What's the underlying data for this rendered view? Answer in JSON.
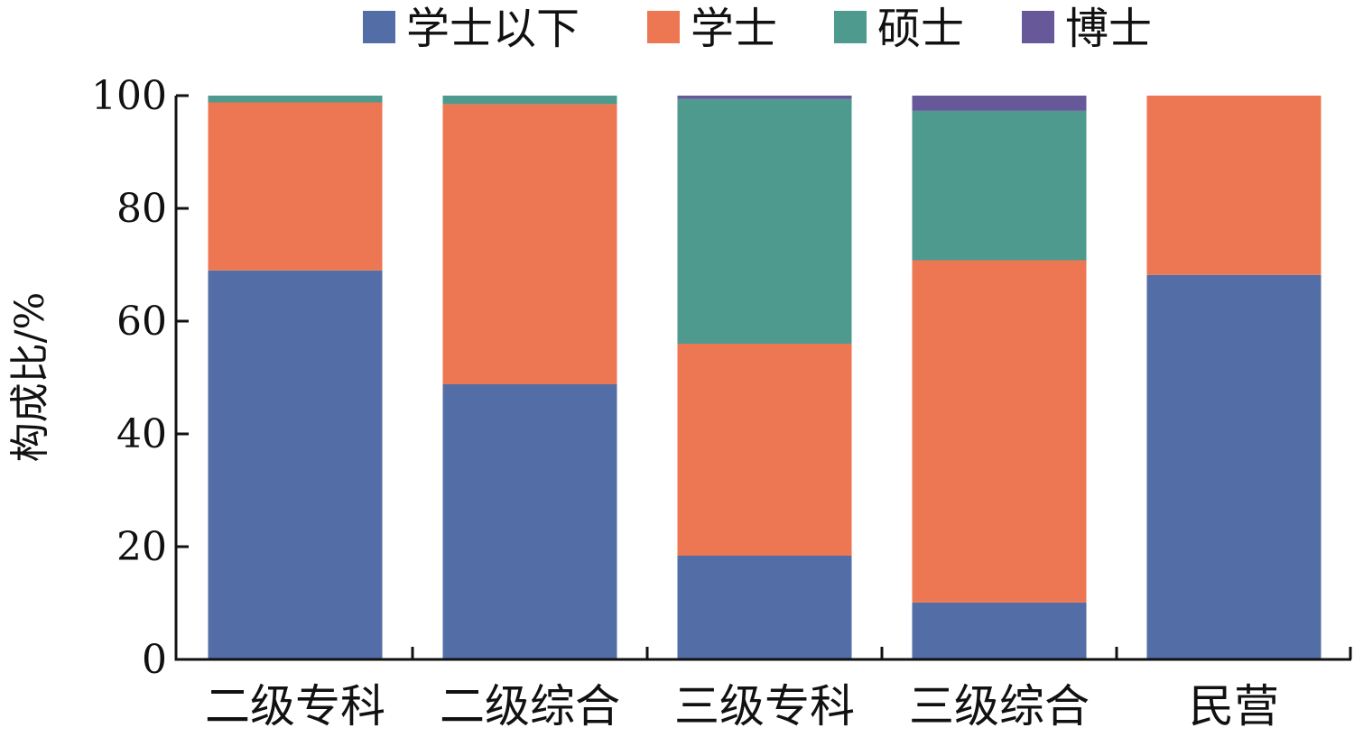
{
  "chart_data": {
    "type": "bar",
    "stacked": true,
    "title": "",
    "xlabel": "",
    "ylabel": "构成比/%",
    "ylim": [
      0,
      100
    ],
    "yticks": [
      "0",
      "20",
      "40",
      "60",
      "80",
      "100"
    ],
    "grid": false,
    "legend_position": "top",
    "categories": [
      "二级专科",
      "二级综合",
      "三级专科",
      "三级综合",
      "民营"
    ],
    "series": [
      {
        "name": "学士以下",
        "color": "#536DA6",
        "values": [
          69.0,
          48.8,
          18.4,
          10.1,
          68.2
        ]
      },
      {
        "name": "学士",
        "color": "#ED7752",
        "values": [
          29.8,
          49.7,
          37.6,
          60.7,
          31.8
        ]
      },
      {
        "name": "硕士",
        "color": "#4E9A8E",
        "values": [
          1.2,
          1.5,
          43.4,
          26.5,
          0.0
        ]
      },
      {
        "name": "博士",
        "color": "#67589A",
        "values": [
          0.0,
          0.0,
          0.6,
          2.7,
          0.0
        ]
      }
    ]
  }
}
